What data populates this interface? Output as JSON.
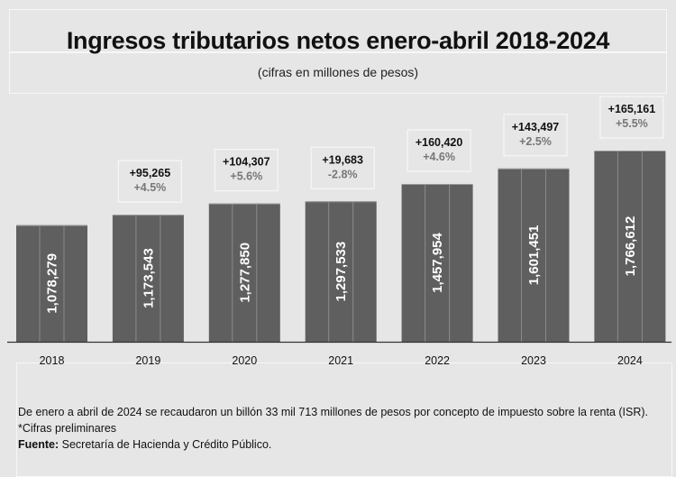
{
  "header": {
    "title": "Ingresos tributarios netos enero-abril 2018-2024",
    "subtitle": "(cifras en millones de pesos)"
  },
  "chart_data": {
    "type": "bar",
    "title": "Ingresos tributarios netos enero-abril 2018-2024",
    "subtitle": "(cifras en millones de pesos)",
    "categories": [
      "2018",
      "2019",
      "2020",
      "2021",
      "2022",
      "2023",
      "2024"
    ],
    "values": [
      1078279,
      1173543,
      1277850,
      1297533,
      1457954,
      1601451,
      1766612
    ],
    "value_labels": [
      "1,078,279",
      "1,173,543",
      "1,277,850",
      "1,297,533",
      "1,457,954",
      "1,601,451",
      "1,766,612"
    ],
    "change_abs": [
      "",
      "+95,265",
      "+104,307",
      "+19,683",
      "+160,420",
      "+143,497",
      "+165,161"
    ],
    "change_pct": [
      "",
      "+4.5%",
      "+5.6%",
      "-2.8%",
      "+4.6%",
      "+2.5%",
      "+5.5%"
    ],
    "ylim": [
      0,
      1900000
    ],
    "grid": false,
    "bar_color": "#5f5f5f",
    "label_color": "#ffffff"
  },
  "notes": {
    "line1": "De enero a abril de 2024 se recaudaron un billón 33 mil 713 millones de pesos por concepto de impuesto sobre la renta (ISR).",
    "line2": "*Cifras preliminares",
    "source_label": "Fuente:",
    "source_text": " Secretaría de Hacienda y Crédito Público."
  }
}
